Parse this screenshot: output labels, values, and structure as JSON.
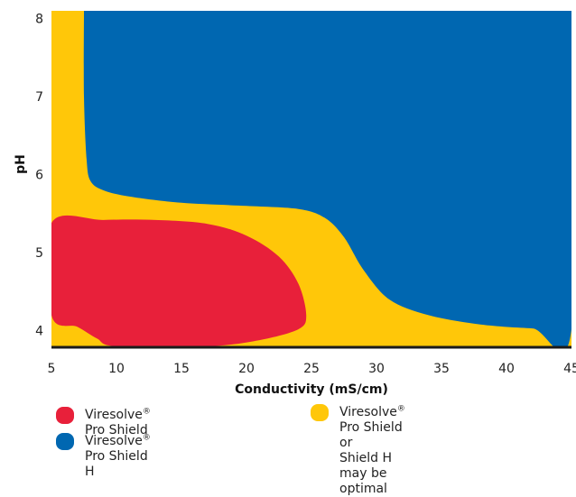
{
  "colors": {
    "shield": "#E8203A",
    "shield_h": "#0067B1",
    "either": "#FFC709"
  },
  "chart_data": {
    "type": "area",
    "title": "",
    "xlabel": "Conductivity (mS/cm)",
    "ylabel": "pH",
    "xlim": [
      5,
      45
    ],
    "ylim": [
      3.8,
      8.1
    ],
    "xticks": [
      5,
      10,
      15,
      20,
      25,
      30,
      35,
      40,
      45
    ],
    "yticks": [
      4,
      5,
      6,
      7,
      8
    ],
    "grid": false,
    "legend_position": "bottom",
    "series": [
      {
        "name": "Viresolve® Pro Shield or Shield H may be optimal",
        "color_key": "either",
        "description_region": "background",
        "boundary": [
          [
            5,
            3.8
          ],
          [
            45,
            3.8
          ],
          [
            45,
            8.1
          ],
          [
            5,
            8.1
          ]
        ]
      },
      {
        "name": "Viresolve® Pro Shield H",
        "color_key": "shield_h",
        "boundary": [
          [
            7.5,
            8.1
          ],
          [
            45,
            8.1
          ],
          [
            45,
            4.02
          ],
          [
            42,
            4.03
          ],
          [
            38,
            4.08
          ],
          [
            34,
            4.2
          ],
          [
            31,
            4.4
          ],
          [
            29,
            4.78
          ],
          [
            27.5,
            5.2
          ],
          [
            26,
            5.45
          ],
          [
            24,
            5.56
          ],
          [
            20,
            5.6
          ],
          [
            15,
            5.64
          ],
          [
            11,
            5.72
          ],
          [
            9,
            5.8
          ],
          [
            8,
            5.92
          ],
          [
            7.7,
            6.2
          ],
          [
            7.5,
            7
          ],
          [
            7.5,
            8.1
          ]
        ]
      },
      {
        "name": "Viresolve® Pro Shield",
        "color_key": "shield",
        "boundary": [
          [
            5,
            5.38
          ],
          [
            9,
            5.42
          ],
          [
            13,
            5.42
          ],
          [
            17,
            5.37
          ],
          [
            20,
            5.22
          ],
          [
            22.5,
            4.95
          ],
          [
            24,
            4.6
          ],
          [
            24.6,
            4.2
          ],
          [
            24,
            4.02
          ],
          [
            21,
            3.88
          ],
          [
            17,
            3.8
          ],
          [
            10,
            3.8
          ],
          [
            8.5,
            3.9
          ],
          [
            7,
            4.05
          ],
          [
            5,
            4.2
          ]
        ]
      }
    ]
  },
  "legend": {
    "shield": {
      "name": "Viresolve",
      "mark": "®",
      "rest": " Pro Shield"
    },
    "shield_h": {
      "name": "Viresolve",
      "mark": "®",
      "rest": " Pro Shield H"
    },
    "either_line1": {
      "name": "Viresolve",
      "mark": "®",
      "rest": " Pro Shield or"
    },
    "either_line2": "Shield H may be optimal"
  }
}
